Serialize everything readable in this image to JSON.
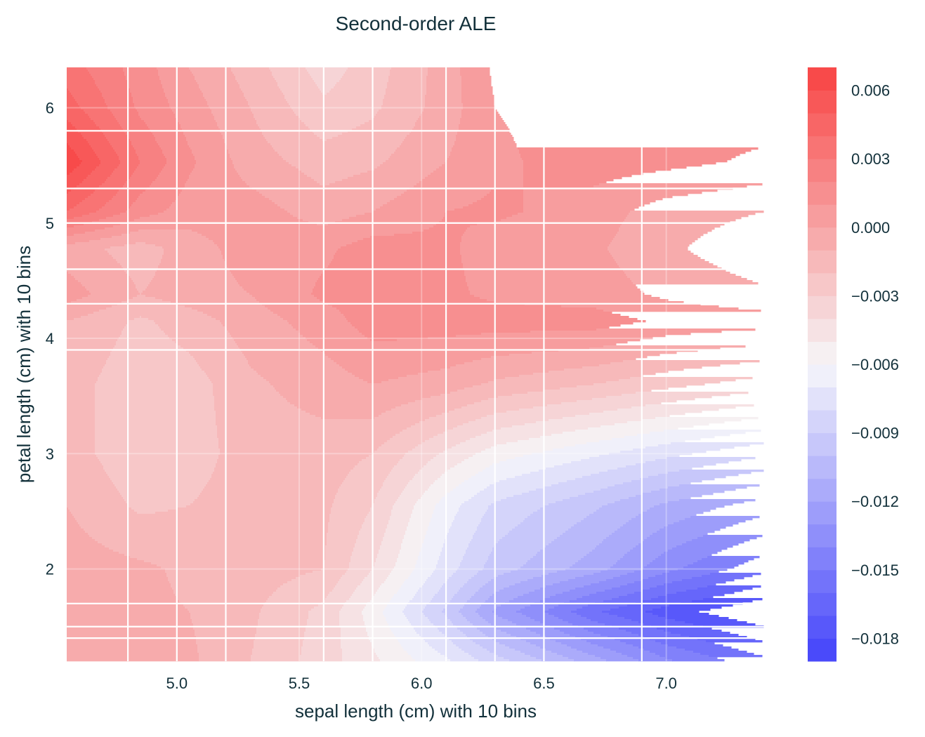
{
  "chart_data": {
    "type": "heatmap",
    "style": "filled-contour",
    "title": "Second-order ALE",
    "xlabel": "sepal length (cm) with 10 bins",
    "ylabel": "petal length (cm) with 10 bins",
    "xlim": [
      4.55,
      7.4
    ],
    "ylim": [
      1.2,
      6.35
    ],
    "xticks": [
      5.0,
      5.5,
      6.0,
      6.5,
      7.0
    ],
    "xtick_labels": [
      "5.0",
      "5.5",
      "6.0",
      "6.5",
      "7.0"
    ],
    "yticks": [
      2,
      3,
      4,
      5,
      6
    ],
    "ytick_labels": [
      "2",
      "3",
      "4",
      "5",
      "6"
    ],
    "x_bin_edges": [
      4.8,
      5.0,
      5.2,
      5.6,
      5.8,
      6.1,
      6.3,
      6.5,
      6.9
    ],
    "y_bin_edges": [
      5.8,
      5.3,
      5.0,
      4.6,
      4.3,
      3.9,
      1.7,
      1.5,
      1.4
    ],
    "grid": true,
    "x": [
      4.55,
      4.85,
      5.05,
      5.3,
      5.6,
      5.8,
      6.1,
      6.3,
      6.7,
      7.0,
      7.4
    ],
    "y": [
      6.35,
      6.0,
      5.53,
      5.1,
      4.78,
      4.38,
      4.15,
      3.6,
      3.0,
      2.55,
      2.0,
      1.63,
      1.2
    ],
    "z": [
      [
        0.0035,
        0.0015,
        0.0,
        -0.0015,
        -0.0035,
        -0.0025,
        -0.0005,
        0.0012,
        0.0015,
        0.0015,
        0.0015
      ],
      [
        0.0045,
        0.0018,
        0.0005,
        -0.001,
        -0.0028,
        -0.0022,
        -0.0005,
        0.001,
        0.0015,
        0.0015,
        0.0015
      ],
      [
        0.0068,
        0.003,
        0.0012,
        -0.0005,
        -0.0015,
        -0.0012,
        0.0,
        0.0008,
        0.0015,
        0.0013,
        0.0008
      ],
      [
        0.004,
        0.0015,
        0.0005,
        0.0005,
        -0.0005,
        0.0,
        0.001,
        0.0012,
        0.0005,
        -0.0005,
        -0.001
      ],
      [
        -0.0005,
        -0.0015,
        -0.0005,
        0.0005,
        0.0008,
        0.0015,
        0.0012,
        0.0005,
        0.0002,
        -0.0008,
        -0.0018
      ],
      [
        0.0005,
        -0.001,
        -0.0005,
        0.0,
        0.0012,
        0.0015,
        0.0012,
        0.0008,
        0.0005,
        -0.0002,
        -0.0008
      ],
      [
        -0.001,
        -0.0022,
        -0.0015,
        -0.0005,
        0.0005,
        0.0015,
        0.0015,
        0.0015,
        0.0015,
        0.0008,
        0.0005
      ],
      [
        -0.0015,
        -0.0028,
        -0.0025,
        -0.0012,
        -0.0005,
        0.0,
        -0.0005,
        -0.0012,
        -0.002,
        -0.0027,
        -0.0035
      ],
      [
        -0.0015,
        -0.0028,
        -0.0025,
        -0.0015,
        -0.0015,
        -0.002,
        -0.0042,
        -0.0055,
        -0.0068,
        -0.0077,
        -0.0088
      ],
      [
        -0.001,
        -0.0022,
        -0.002,
        -0.0015,
        -0.0018,
        -0.003,
        -0.0065,
        -0.0082,
        -0.0098,
        -0.0112,
        -0.0125
      ],
      [
        -0.0005,
        -0.0008,
        -0.0012,
        -0.0015,
        -0.002,
        -0.004,
        -0.0075,
        -0.0095,
        -0.0115,
        -0.0137,
        -0.0157
      ],
      [
        -0.0005,
        -0.0008,
        -0.001,
        -0.0018,
        -0.0033,
        -0.0055,
        -0.0092,
        -0.0122,
        -0.0158,
        -0.0175,
        -0.019
      ],
      [
        -0.0005,
        -0.0005,
        -0.0008,
        -0.002,
        -0.0035,
        -0.0048,
        -0.0068,
        -0.0085,
        -0.0115,
        -0.0138,
        -0.0157
      ]
    ],
    "colorbar": {
      "range": [
        -0.019,
        0.007
      ],
      "level_step": 0.001,
      "ticks": [
        0.006,
        0.003,
        0.0,
        -0.003,
        -0.006,
        -0.009,
        -0.012,
        -0.015,
        -0.018
      ],
      "tick_labels": [
        "0.006",
        "0.003",
        "0.000",
        "−0.003",
        "−0.006",
        "−0.009",
        "−0.012",
        "−0.015",
        "−0.018"
      ],
      "colormap": {
        "low": "#4a4afa",
        "mid": "#f6f0f2",
        "high": "#f84a4a"
      }
    }
  }
}
